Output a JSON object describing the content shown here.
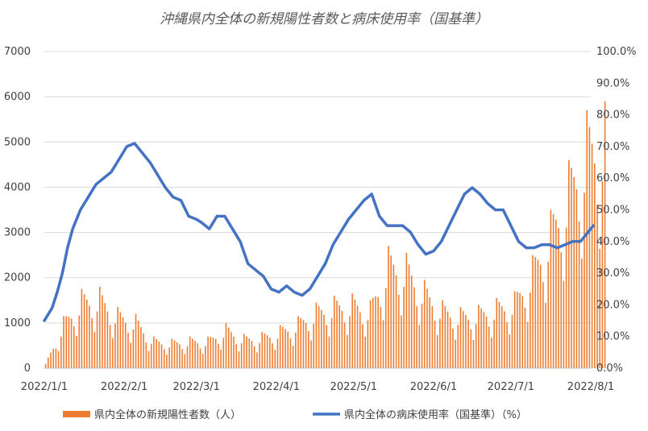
{
  "chart_data": {
    "type": "bar+line",
    "title": "沖縄県内全体の新規陽性者数と病床使用率（国基準）",
    "x_tick_labels": [
      "2022/1/1",
      "2022/2/1",
      "2022/3/1",
      "2022/4/1",
      "2022/5/1",
      "2022/6/1",
      "2022/7/1",
      "2022/8/1"
    ],
    "y_left_ticks": [
      "0",
      "1000",
      "2000",
      "3000",
      "4000",
      "5000",
      "6000",
      "7000"
    ],
    "y_right_ticks": [
      "0.0%",
      "10.0%",
      "20.0%",
      "30.0%",
      "40.0%",
      "50.0%",
      "60.0%",
      "70.0%",
      "80.0%",
      "90.0%",
      "100.0%"
    ],
    "ylim_left": [
      0,
      7000
    ],
    "ylim_right": [
      0,
      100
    ],
    "grid": true,
    "legend_position": "bottom",
    "colors": {
      "bar": "#ED7D31",
      "line": "#4472C4",
      "grid": "#D9D9D9"
    },
    "series": [
      {
        "name": "県内全体の新規陽性者数（人）",
        "type": "bar",
        "axis": "left",
        "weekly_anchor_dates": [
          "2022-01-01",
          "2022-01-08",
          "2022-01-15",
          "2022-01-22",
          "2022-01-29",
          "2022-02-05",
          "2022-02-12",
          "2022-02-19",
          "2022-02-26",
          "2022-03-05",
          "2022-03-12",
          "2022-03-19",
          "2022-03-26",
          "2022-04-02",
          "2022-04-09",
          "2022-04-16",
          "2022-04-23",
          "2022-04-30",
          "2022-05-07",
          "2022-05-14",
          "2022-05-21",
          "2022-05-28",
          "2022-06-04",
          "2022-06-11",
          "2022-06-18",
          "2022-06-25",
          "2022-07-02",
          "2022-07-09",
          "2022-07-16",
          "2022-07-23",
          "2022-07-30",
          "2022-08-05"
        ],
        "weekly_peak_values": [
          100,
          1150,
          1750,
          1800,
          1350,
          1200,
          700,
          650,
          700,
          700,
          1000,
          750,
          800,
          950,
          1150,
          1450,
          1600,
          1650,
          1500,
          2700,
          2550,
          1950,
          1500,
          1350,
          1400,
          1550,
          1700,
          2500,
          3500,
          4600,
          5700,
          5900
        ]
      },
      {
        "name": "県内全体の病床使用率（国基準）（%）",
        "type": "line",
        "axis": "right",
        "dates": [
          "2022-01-01",
          "2022-01-04",
          "2022-01-06",
          "2022-01-08",
          "2022-01-10",
          "2022-01-12",
          "2022-01-15",
          "2022-01-18",
          "2022-01-21",
          "2022-01-24",
          "2022-01-27",
          "2022-01-30",
          "2022-02-02",
          "2022-02-05",
          "2022-02-08",
          "2022-02-11",
          "2022-02-14",
          "2022-02-17",
          "2022-02-20",
          "2022-02-23",
          "2022-02-26",
          "2022-03-01",
          "2022-03-03",
          "2022-03-06",
          "2022-03-09",
          "2022-03-12",
          "2022-03-15",
          "2022-03-18",
          "2022-03-21",
          "2022-03-24",
          "2022-03-27",
          "2022-03-30",
          "2022-04-02",
          "2022-04-05",
          "2022-04-08",
          "2022-04-11",
          "2022-04-14",
          "2022-04-17",
          "2022-04-20",
          "2022-04-23",
          "2022-04-26",
          "2022-04-29",
          "2022-05-02",
          "2022-05-05",
          "2022-05-08",
          "2022-05-11",
          "2022-05-14",
          "2022-05-17",
          "2022-05-20",
          "2022-05-23",
          "2022-05-26",
          "2022-05-29",
          "2022-06-01",
          "2022-06-04",
          "2022-06-07",
          "2022-06-10",
          "2022-06-13",
          "2022-06-16",
          "2022-06-19",
          "2022-06-22",
          "2022-06-25",
          "2022-06-28",
          "2022-07-01",
          "2022-07-04",
          "2022-07-07",
          "2022-07-10",
          "2022-07-13",
          "2022-07-16",
          "2022-07-19",
          "2022-07-22",
          "2022-07-25",
          "2022-07-28",
          "2022-07-31",
          "2022-08-02"
        ],
        "values": [
          15,
          19,
          24,
          30,
          38,
          44,
          50,
          54,
          58,
          60,
          62,
          66,
          70,
          71,
          68,
          65,
          61,
          57,
          54,
          53,
          48,
          47,
          46,
          44,
          48,
          48,
          44,
          40,
          33,
          31,
          29,
          25,
          24,
          26,
          24,
          23,
          25,
          29,
          33,
          39,
          43,
          47,
          50,
          53,
          55,
          48,
          45,
          45,
          45,
          43,
          39,
          36,
          37,
          40,
          45,
          50,
          55,
          57,
          55,
          52,
          50,
          50,
          45,
          40,
          38,
          38,
          39,
          39,
          38,
          39,
          40,
          40,
          43,
          45
        ]
      }
    ]
  },
  "legend": {
    "bar_label": "県内全体の新規陽性者数（人）",
    "line_label": "県内全体の病床使用率（国基準）（%）"
  }
}
